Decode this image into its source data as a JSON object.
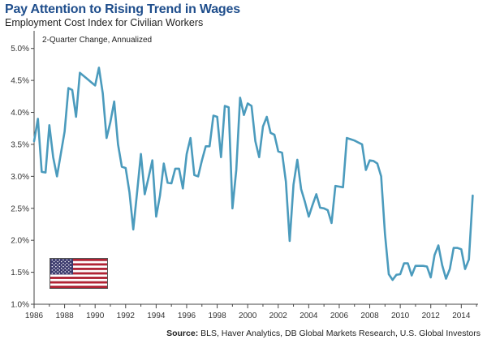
{
  "header": {
    "title": "Pay Attention to Rising Trend in Wages",
    "subtitle": "Employment Cost Index for Civilian Workers"
  },
  "footer": {
    "source_label": "Source:",
    "source_text": "BLS, Haver Analytics, DB Global Markets Research, U.S. Global Investors"
  },
  "chart_data": {
    "type": "line",
    "title": "Pay Attention to Rising Trend in Wages",
    "subtitle": "Employment Cost Index for Civilian Workers",
    "annotation": "2-Quarter Change, Annualized",
    "xlabel": "",
    "ylabel": "",
    "xlim": [
      1986,
      2015.1
    ],
    "ylim": [
      1.0,
      5.25
    ],
    "x_ticks": [
      1986,
      1988,
      1990,
      1992,
      1994,
      1996,
      1998,
      2000,
      2002,
      2004,
      2006,
      2008,
      2010,
      2012,
      2014
    ],
    "y_ticks": [
      1.0,
      1.5,
      2.0,
      2.5,
      3.0,
      3.5,
      4.0,
      4.5,
      5.0
    ],
    "y_tick_labels": [
      "1.0%",
      "1.5%",
      "2.0%",
      "2.5%",
      "3.0%",
      "3.5%",
      "4.0%",
      "4.5%",
      "5.0%"
    ],
    "grid": false,
    "line_color": "#4b9bbd",
    "series": [
      {
        "x": [
          1986.0,
          1986.25,
          1986.5,
          1986.75,
          1987.0,
          1987.25,
          1987.5,
          1987.75,
          1988.0,
          1988.25,
          1988.5,
          1988.75,
          1989.0,
          1989.25,
          1989.5,
          1989.75,
          1990.0,
          1990.25,
          1990.5,
          1990.75,
          1991.0,
          1991.25,
          1991.5,
          1991.75,
          1992.0,
          1992.25,
          1992.5,
          1992.75,
          1993.0,
          1993.25,
          1993.5,
          1993.75,
          1994.0,
          1994.25,
          1994.5,
          1994.75,
          1995.0,
          1995.25,
          1995.5,
          1995.75,
          1996.0,
          1996.25,
          1996.5,
          1996.75,
          1997.0,
          1997.25,
          1997.5,
          1997.75,
          1998.0,
          1998.25,
          1998.5,
          1998.75,
          1999.0,
          1999.25,
          1999.5,
          1999.75,
          2000.0,
          2000.25,
          2000.5,
          2000.75,
          2001.0,
          2001.25,
          2001.5,
          2001.75,
          2002.0,
          2002.25,
          2002.5,
          2002.75,
          2003.0,
          2003.25,
          2003.5,
          2003.75,
          2004.0,
          2004.25,
          2004.5,
          2004.75,
          2005.0,
          2005.25,
          2005.5,
          2005.75,
          2006.0,
          2006.25,
          2006.5,
          2006.75,
          2007.0,
          2007.25,
          2007.5,
          2007.75,
          2008.0,
          2008.25,
          2008.5,
          2008.75,
          2009.0,
          2009.25,
          2009.5,
          2009.75,
          2010.0,
          2010.25,
          2010.5,
          2010.75,
          2011.0,
          2011.25,
          2011.5,
          2011.75,
          2012.0,
          2012.25,
          2012.5,
          2012.75,
          2013.0,
          2013.25,
          2013.5,
          2013.75,
          2014.0,
          2014.25,
          2014.5,
          2014.75
        ],
        "values": [
          3.55,
          3.9,
          3.07,
          3.06,
          3.8,
          3.3,
          3.0,
          3.35,
          3.7,
          4.38,
          4.35,
          3.93,
          4.62,
          4.57,
          4.52,
          4.47,
          4.42,
          4.7,
          4.3,
          3.6,
          3.85,
          4.17,
          3.5,
          3.15,
          3.13,
          2.75,
          2.17,
          2.75,
          3.35,
          2.72,
          2.98,
          3.25,
          2.37,
          2.7,
          3.2,
          2.9,
          2.89,
          3.12,
          3.12,
          2.81,
          3.35,
          3.6,
          3.02,
          3.0,
          3.25,
          3.47,
          3.47,
          3.95,
          3.93,
          3.3,
          4.1,
          4.08,
          2.5,
          3.1,
          4.23,
          3.96,
          4.14,
          4.1,
          3.55,
          3.3,
          3.78,
          3.93,
          3.68,
          3.65,
          3.39,
          3.37,
          2.92,
          1.99,
          2.87,
          3.26,
          2.8,
          2.6,
          2.37,
          2.55,
          2.72,
          2.51,
          2.5,
          2.47,
          2.27,
          2.85,
          2.84,
          2.83,
          3.6,
          3.58,
          3.56,
          3.53,
          3.5,
          3.1,
          3.25,
          3.24,
          3.2,
          3.0,
          2.1,
          1.47,
          1.38,
          1.46,
          1.47,
          1.64,
          1.64,
          1.45,
          1.6,
          1.6,
          1.6,
          1.59,
          1.42,
          1.77,
          1.92,
          1.61,
          1.4,
          1.55,
          1.88,
          1.88,
          1.86,
          1.55,
          1.7,
          2.7
        ]
      }
    ]
  }
}
